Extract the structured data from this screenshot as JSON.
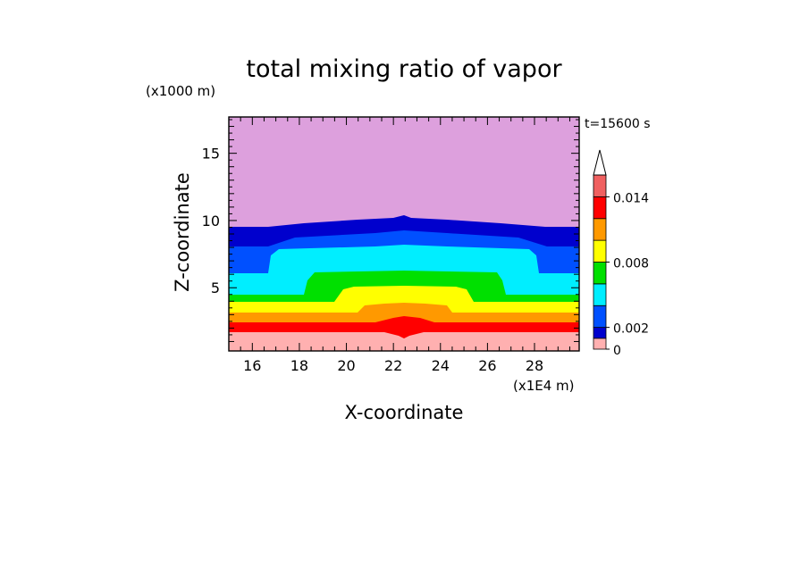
{
  "chart_data": {
    "type": "heatmap",
    "title": "total mixing ratio of vapor",
    "time_label": "t=15600 s",
    "xlabel": "X-coordinate",
    "ylabel": "Z-coordinate",
    "x_unit": "(x1E4 m)",
    "y_unit": "(x1000 m)",
    "xlim": [
      15,
      29.9
    ],
    "ylim": [
      0.3,
      17.7
    ],
    "x_ticks": [
      "16",
      "18",
      "20",
      "22",
      "24",
      "26",
      "28"
    ],
    "y_ticks": [
      "5",
      "10",
      "15"
    ],
    "colorbar": {
      "levels": [
        0,
        0.001,
        0.002,
        0.004,
        0.006,
        0.008,
        0.01,
        0.012,
        0.014,
        0.016
      ],
      "labels": [
        "0",
        "0.002",
        "0.008",
        "0.014"
      ],
      "colors": [
        "#ffb0b0",
        "#0000cd",
        "#0050ff",
        "#00eeff",
        "#00e000",
        "#ffff00",
        "#ff9900",
        "#ff0000",
        "#f06060",
        "#ffc4c4"
      ],
      "extend": "max",
      "extend_color": "#ffffff"
    },
    "regions": [
      {
        "name": "upper-dry",
        "color": "#dda0dd"
      },
      {
        "name": "band-navy",
        "color": "#0000cd"
      },
      {
        "name": "band-blue",
        "color": "#0050ff"
      },
      {
        "name": "band-cyan",
        "color": "#00eeff"
      },
      {
        "name": "band-green",
        "color": "#00e000"
      },
      {
        "name": "band-yellow",
        "color": "#ffff00"
      },
      {
        "name": "band-orange",
        "color": "#ff9900"
      },
      {
        "name": "band-red",
        "color": "#ff0000"
      },
      {
        "name": "band-pink",
        "color": "#ffb0b0"
      }
    ]
  }
}
